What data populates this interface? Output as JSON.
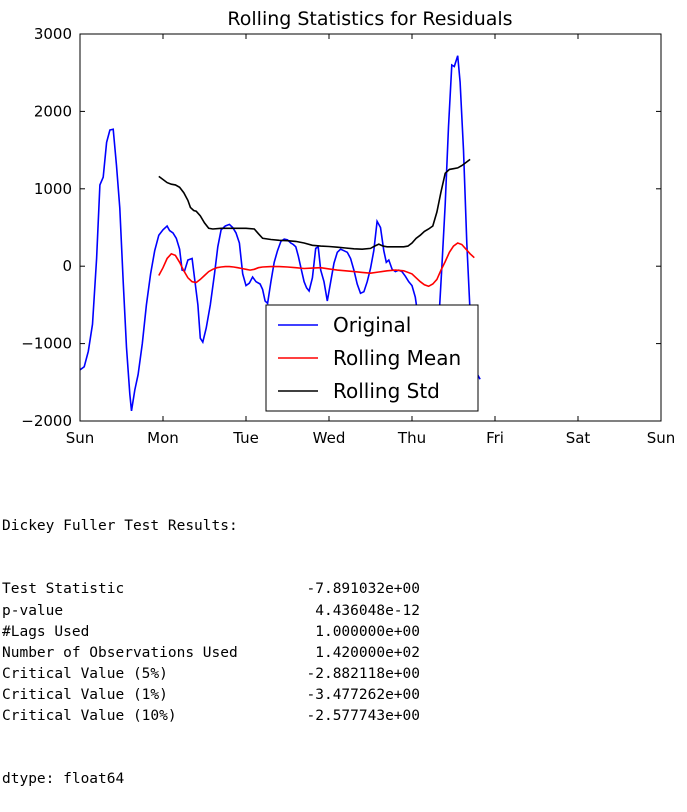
{
  "chart_data": {
    "type": "line",
    "title": "Rolling Statistics for Residuals",
    "xlabel": "",
    "ylabel": "",
    "x_ticks": [
      "Sun",
      "Mon",
      "Tue",
      "Wed",
      "Thu",
      "Fri",
      "Sat",
      "Sun"
    ],
    "xlim": [
      0,
      7
    ],
    "ylim": [
      -2000,
      3000
    ],
    "y_ticks": [
      -2000,
      -1000,
      0,
      1000,
      2000,
      3000
    ],
    "grid": false,
    "legend_position": "lower center",
    "series": [
      {
        "name": "Original",
        "color": "#0000ff",
        "points": [
          [
            0.0,
            -1340
          ],
          [
            0.05,
            -1300
          ],
          [
            0.1,
            -1100
          ],
          [
            0.15,
            -750
          ],
          [
            0.2,
            100
          ],
          [
            0.24,
            1050
          ],
          [
            0.28,
            1150
          ],
          [
            0.32,
            1600
          ],
          [
            0.36,
            1760
          ],
          [
            0.4,
            1770
          ],
          [
            0.44,
            1300
          ],
          [
            0.48,
            750
          ],
          [
            0.52,
            -200
          ],
          [
            0.56,
            -1050
          ],
          [
            0.6,
            -1650
          ],
          [
            0.62,
            -1870
          ],
          [
            0.66,
            -1600
          ],
          [
            0.7,
            -1400
          ],
          [
            0.75,
            -1000
          ],
          [
            0.8,
            -500
          ],
          [
            0.85,
            -100
          ],
          [
            0.9,
            200
          ],
          [
            0.95,
            400
          ],
          [
            1.0,
            470
          ],
          [
            1.05,
            520
          ],
          [
            1.08,
            460
          ],
          [
            1.12,
            430
          ],
          [
            1.16,
            360
          ],
          [
            1.2,
            220
          ],
          [
            1.23,
            -50
          ],
          [
            1.26,
            -60
          ],
          [
            1.3,
            80
          ],
          [
            1.35,
            100
          ],
          [
            1.38,
            -150
          ],
          [
            1.42,
            -500
          ],
          [
            1.45,
            -930
          ],
          [
            1.48,
            -980
          ],
          [
            1.52,
            -800
          ],
          [
            1.57,
            -500
          ],
          [
            1.62,
            -100
          ],
          [
            1.66,
            250
          ],
          [
            1.7,
            470
          ],
          [
            1.75,
            520
          ],
          [
            1.8,
            540
          ],
          [
            1.84,
            500
          ],
          [
            1.88,
            430
          ],
          [
            1.92,
            300
          ],
          [
            1.96,
            -100
          ],
          [
            2.0,
            -250
          ],
          [
            2.04,
            -220
          ],
          [
            2.08,
            -140
          ],
          [
            2.12,
            -200
          ],
          [
            2.17,
            -230
          ],
          [
            2.2,
            -300
          ],
          [
            2.23,
            -450
          ],
          [
            2.26,
            -480
          ],
          [
            2.3,
            -200
          ],
          [
            2.34,
            50
          ],
          [
            2.38,
            200
          ],
          [
            2.42,
            320
          ],
          [
            2.46,
            350
          ],
          [
            2.5,
            340
          ],
          [
            2.54,
            300
          ],
          [
            2.57,
            280
          ],
          [
            2.6,
            250
          ],
          [
            2.63,
            130
          ],
          [
            2.67,
            -60
          ],
          [
            2.7,
            -200
          ],
          [
            2.73,
            -280
          ],
          [
            2.76,
            -320
          ],
          [
            2.8,
            -150
          ],
          [
            2.84,
            230
          ],
          [
            2.87,
            250
          ],
          [
            2.9,
            -50
          ],
          [
            2.94,
            -200
          ],
          [
            2.98,
            -450
          ],
          [
            3.02,
            -200
          ],
          [
            3.06,
            40
          ],
          [
            3.1,
            180
          ],
          [
            3.14,
            220
          ],
          [
            3.18,
            200
          ],
          [
            3.22,
            180
          ],
          [
            3.26,
            100
          ],
          [
            3.3,
            -50
          ],
          [
            3.34,
            -230
          ],
          [
            3.38,
            -350
          ],
          [
            3.42,
            -330
          ],
          [
            3.46,
            -200
          ],
          [
            3.5,
            -30
          ],
          [
            3.54,
            200
          ],
          [
            3.58,
            580
          ],
          [
            3.62,
            500
          ],
          [
            3.66,
            200
          ],
          [
            3.69,
            50
          ],
          [
            3.72,
            80
          ],
          [
            3.76,
            -40
          ],
          [
            3.8,
            -70
          ],
          [
            3.84,
            -50
          ],
          [
            3.88,
            -70
          ],
          [
            3.92,
            -130
          ],
          [
            3.96,
            -200
          ],
          [
            4.0,
            -250
          ],
          [
            4.04,
            -400
          ],
          [
            4.08,
            -700
          ],
          [
            4.12,
            -1020
          ],
          [
            4.16,
            -980
          ],
          [
            4.2,
            -800
          ],
          [
            4.24,
            -880
          ],
          [
            4.28,
            -950
          ],
          [
            4.32,
            -750
          ],
          [
            4.36,
            0
          ],
          [
            4.4,
            800
          ],
          [
            4.44,
            1800
          ],
          [
            4.48,
            2600
          ],
          [
            4.51,
            2580
          ],
          [
            4.55,
            2720
          ],
          [
            4.58,
            2380
          ],
          [
            4.62,
            1500
          ],
          [
            4.66,
            300
          ],
          [
            4.7,
            -600
          ],
          [
            4.74,
            -1200
          ],
          [
            4.78,
            -1380
          ],
          [
            4.82,
            -1460
          ]
        ]
      },
      {
        "name": "Rolling Mean",
        "color": "#ff0000",
        "points": [
          [
            0.95,
            -120
          ],
          [
            1.0,
            -20
          ],
          [
            1.05,
            100
          ],
          [
            1.1,
            160
          ],
          [
            1.15,
            140
          ],
          [
            1.2,
            50
          ],
          [
            1.25,
            -60
          ],
          [
            1.3,
            -150
          ],
          [
            1.35,
            -200
          ],
          [
            1.4,
            -210
          ],
          [
            1.45,
            -170
          ],
          [
            1.5,
            -120
          ],
          [
            1.55,
            -70
          ],
          [
            1.6,
            -40
          ],
          [
            1.65,
            -20
          ],
          [
            1.7,
            -10
          ],
          [
            1.75,
            -5
          ],
          [
            1.8,
            -5
          ],
          [
            1.85,
            -10
          ],
          [
            1.9,
            -20
          ],
          [
            1.95,
            -30
          ],
          [
            2.0,
            -40
          ],
          [
            2.05,
            -50
          ],
          [
            2.1,
            -40
          ],
          [
            2.15,
            -20
          ],
          [
            2.2,
            -10
          ],
          [
            2.3,
            -5
          ],
          [
            2.4,
            -5
          ],
          [
            2.5,
            -10
          ],
          [
            2.6,
            -20
          ],
          [
            2.7,
            -30
          ],
          [
            2.8,
            -25
          ],
          [
            2.9,
            -20
          ],
          [
            3.0,
            -35
          ],
          [
            3.1,
            -50
          ],
          [
            3.2,
            -60
          ],
          [
            3.3,
            -70
          ],
          [
            3.4,
            -80
          ],
          [
            3.5,
            -90
          ],
          [
            3.6,
            -75
          ],
          [
            3.7,
            -60
          ],
          [
            3.8,
            -50
          ],
          [
            3.9,
            -60
          ],
          [
            4.0,
            -100
          ],
          [
            4.05,
            -150
          ],
          [
            4.1,
            -200
          ],
          [
            4.15,
            -240
          ],
          [
            4.2,
            -260
          ],
          [
            4.25,
            -230
          ],
          [
            4.3,
            -170
          ],
          [
            4.35,
            -50
          ],
          [
            4.4,
            60
          ],
          [
            4.45,
            180
          ],
          [
            4.5,
            260
          ],
          [
            4.55,
            300
          ],
          [
            4.6,
            280
          ],
          [
            4.65,
            220
          ],
          [
            4.7,
            160
          ],
          [
            4.75,
            110
          ]
        ]
      },
      {
        "name": "Rolling Std",
        "color": "#000000",
        "points": [
          [
            0.95,
            1160
          ],
          [
            1.0,
            1120
          ],
          [
            1.05,
            1080
          ],
          [
            1.1,
            1060
          ],
          [
            1.15,
            1050
          ],
          [
            1.2,
            1020
          ],
          [
            1.25,
            950
          ],
          [
            1.3,
            850
          ],
          [
            1.33,
            760
          ],
          [
            1.37,
            720
          ],
          [
            1.4,
            710
          ],
          [
            1.45,
            650
          ],
          [
            1.5,
            560
          ],
          [
            1.55,
            490
          ],
          [
            1.6,
            480
          ],
          [
            1.7,
            490
          ],
          [
            1.8,
            490
          ],
          [
            1.9,
            490
          ],
          [
            2.0,
            490
          ],
          [
            2.1,
            480
          ],
          [
            2.15,
            420
          ],
          [
            2.2,
            360
          ],
          [
            2.3,
            345
          ],
          [
            2.4,
            335
          ],
          [
            2.5,
            330
          ],
          [
            2.6,
            320
          ],
          [
            2.7,
            300
          ],
          [
            2.8,
            270
          ],
          [
            2.9,
            260
          ],
          [
            3.0,
            255
          ],
          [
            3.1,
            245
          ],
          [
            3.2,
            235
          ],
          [
            3.3,
            225
          ],
          [
            3.4,
            220
          ],
          [
            3.5,
            230
          ],
          [
            3.55,
            260
          ],
          [
            3.6,
            285
          ],
          [
            3.65,
            260
          ],
          [
            3.7,
            250
          ],
          [
            3.8,
            250
          ],
          [
            3.9,
            250
          ],
          [
            3.95,
            260
          ],
          [
            4.0,
            300
          ],
          [
            4.05,
            360
          ],
          [
            4.1,
            400
          ],
          [
            4.15,
            450
          ],
          [
            4.2,
            480
          ],
          [
            4.25,
            520
          ],
          [
            4.3,
            700
          ],
          [
            4.35,
            960
          ],
          [
            4.4,
            1200
          ],
          [
            4.45,
            1250
          ],
          [
            4.5,
            1260
          ],
          [
            4.55,
            1270
          ],
          [
            4.6,
            1300
          ],
          [
            4.65,
            1340
          ],
          [
            4.7,
            1380
          ]
        ]
      }
    ]
  },
  "output": {
    "heading": "Dickey Fuller Test Results:",
    "rows": [
      {
        "label": "Test Statistic",
        "value": "-7.891032e+00"
      },
      {
        "label": "p-value",
        "value": "4.436048e-12"
      },
      {
        "label": "#Lags Used",
        "value": "1.000000e+00"
      },
      {
        "label": "Number of Observations Used",
        "value": "1.420000e+02"
      },
      {
        "label": "Critical Value (5%)",
        "value": "-2.882118e+00"
      },
      {
        "label": "Critical Value (1%)",
        "value": "-3.477262e+00"
      },
      {
        "label": "Critical Value (10%)",
        "value": "-2.577743e+00"
      }
    ],
    "dtype_line": "dtype: float64"
  }
}
